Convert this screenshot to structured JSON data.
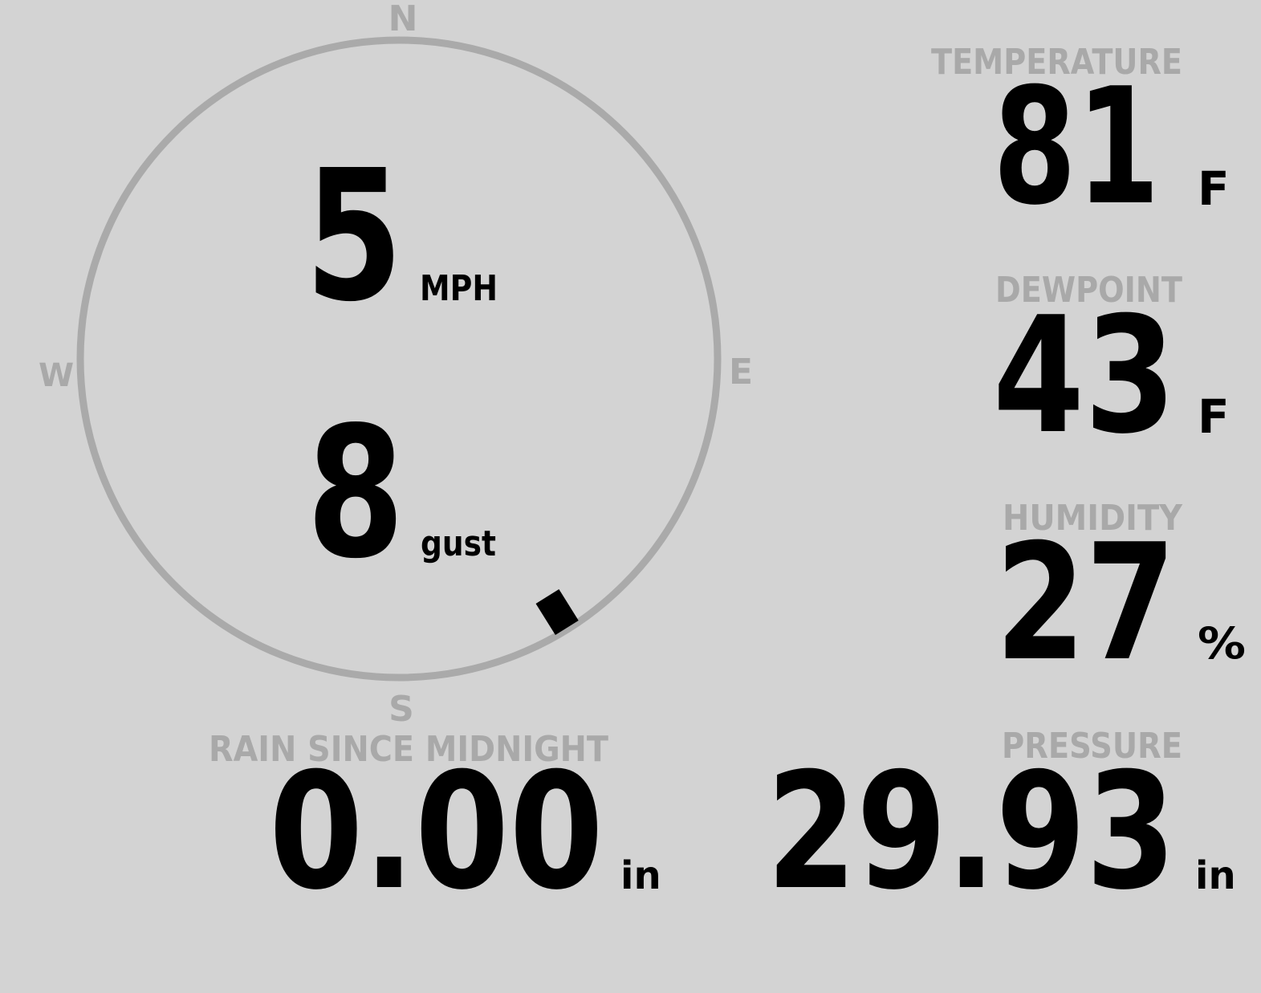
{
  "compass": {
    "north": "N",
    "east": "E",
    "south": "S",
    "west": "W",
    "wind_direction_deg": 148
  },
  "wind": {
    "speed": "5",
    "speed_unit": "MPH",
    "gust": "8",
    "gust_unit": "gust"
  },
  "temperature": {
    "label": "TEMPERATURE",
    "value": "81",
    "unit": "F"
  },
  "dewpoint": {
    "label": "DEWPOINT",
    "value": "43",
    "unit": "F"
  },
  "humidity": {
    "label": "HUMIDITY",
    "value": "27",
    "unit": "%"
  },
  "rain": {
    "label": "RAIN SINCE MIDNIGHT",
    "value": "0.00",
    "unit": "in"
  },
  "pressure": {
    "label": "PRESSURE",
    "value": "29.93",
    "unit": "in"
  }
}
